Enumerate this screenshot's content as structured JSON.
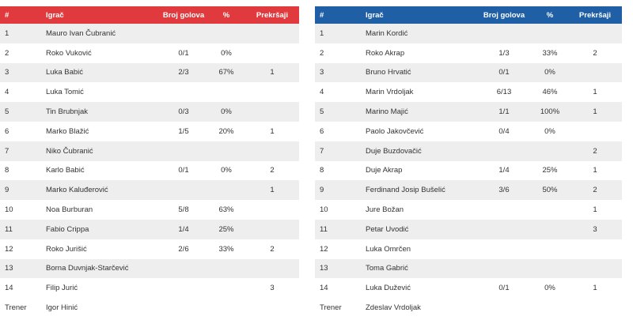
{
  "home": {
    "accent": "#e03a3e",
    "headers": [
      "#",
      "Igrač",
      "Broj golova",
      "%",
      "Prekršaji"
    ],
    "players": [
      {
        "num": "1",
        "name": "Mauro Ivan Čubranić",
        "goals": "",
        "pct": "",
        "fouls": ""
      },
      {
        "num": "2",
        "name": "Roko Vuković",
        "goals": "0/1",
        "pct": "0%",
        "fouls": ""
      },
      {
        "num": "3",
        "name": "Luka Babić",
        "goals": "2/3",
        "pct": "67%",
        "fouls": "1"
      },
      {
        "num": "4",
        "name": "Luka Tomić",
        "goals": "",
        "pct": "",
        "fouls": ""
      },
      {
        "num": "5",
        "name": "Tin Brubnjak",
        "goals": "0/3",
        "pct": "0%",
        "fouls": ""
      },
      {
        "num": "6",
        "name": "Marko Blažić",
        "goals": "1/5",
        "pct": "20%",
        "fouls": "1"
      },
      {
        "num": "7",
        "name": "Niko Čubranić",
        "goals": "",
        "pct": "",
        "fouls": ""
      },
      {
        "num": "8",
        "name": "Karlo Babić",
        "goals": "0/1",
        "pct": "0%",
        "fouls": "2"
      },
      {
        "num": "9",
        "name": "Marko Kaluđerović",
        "goals": "",
        "pct": "",
        "fouls": "1"
      },
      {
        "num": "10",
        "name": "Noa Burburan",
        "goals": "5/8",
        "pct": "63%",
        "fouls": ""
      },
      {
        "num": "11",
        "name": "Fabio Crippa",
        "goals": "1/4",
        "pct": "25%",
        "fouls": ""
      },
      {
        "num": "12",
        "name": "Roko Jurišić",
        "goals": "2/6",
        "pct": "33%",
        "fouls": "2"
      },
      {
        "num": "13",
        "name": "Borna Duvnjak-Starčević",
        "goals": "",
        "pct": "",
        "fouls": ""
      },
      {
        "num": "14",
        "name": "Filip Jurić",
        "goals": "",
        "pct": "",
        "fouls": "3"
      }
    ],
    "coach_label": "Trener",
    "coach_name": "Igor Hinić"
  },
  "away": {
    "accent": "#1f5fa6",
    "headers": [
      "#",
      "Igrač",
      "Broj golova",
      "%",
      "Prekršaji"
    ],
    "players": [
      {
        "num": "1",
        "name": "Marin Kordić",
        "goals": "",
        "pct": "",
        "fouls": ""
      },
      {
        "num": "2",
        "name": "Roko Akrap",
        "goals": "1/3",
        "pct": "33%",
        "fouls": "2"
      },
      {
        "num": "3",
        "name": "Bruno Hrvatić",
        "goals": "0/1",
        "pct": "0%",
        "fouls": ""
      },
      {
        "num": "4",
        "name": "Marin Vrdoljak",
        "goals": "6/13",
        "pct": "46%",
        "fouls": "1"
      },
      {
        "num": "5",
        "name": "Marino Majić",
        "goals": "1/1",
        "pct": "100%",
        "fouls": "1"
      },
      {
        "num": "6",
        "name": "Paolo Jakovčević",
        "goals": "0/4",
        "pct": "0%",
        "fouls": ""
      },
      {
        "num": "7",
        "name": "Duje Buzdovačić",
        "goals": "",
        "pct": "",
        "fouls": "2"
      },
      {
        "num": "8",
        "name": "Duje Akrap",
        "goals": "1/4",
        "pct": "25%",
        "fouls": "1"
      },
      {
        "num": "9",
        "name": "Ferdinand Josip Bušelić",
        "goals": "3/6",
        "pct": "50%",
        "fouls": "2"
      },
      {
        "num": "10",
        "name": "Jure Božan",
        "goals": "",
        "pct": "",
        "fouls": "1"
      },
      {
        "num": "11",
        "name": "Petar Uvodić",
        "goals": "",
        "pct": "",
        "fouls": "3"
      },
      {
        "num": "12",
        "name": "Luka Omrčen",
        "goals": "",
        "pct": "",
        "fouls": ""
      },
      {
        "num": "13",
        "name": "Toma Gabrić",
        "goals": "",
        "pct": "",
        "fouls": ""
      },
      {
        "num": "14",
        "name": "Luka Dužević",
        "goals": "0/1",
        "pct": "0%",
        "fouls": "1"
      }
    ],
    "coach_label": "Trener",
    "coach_name": "Zdeslav Vrdoljak"
  }
}
